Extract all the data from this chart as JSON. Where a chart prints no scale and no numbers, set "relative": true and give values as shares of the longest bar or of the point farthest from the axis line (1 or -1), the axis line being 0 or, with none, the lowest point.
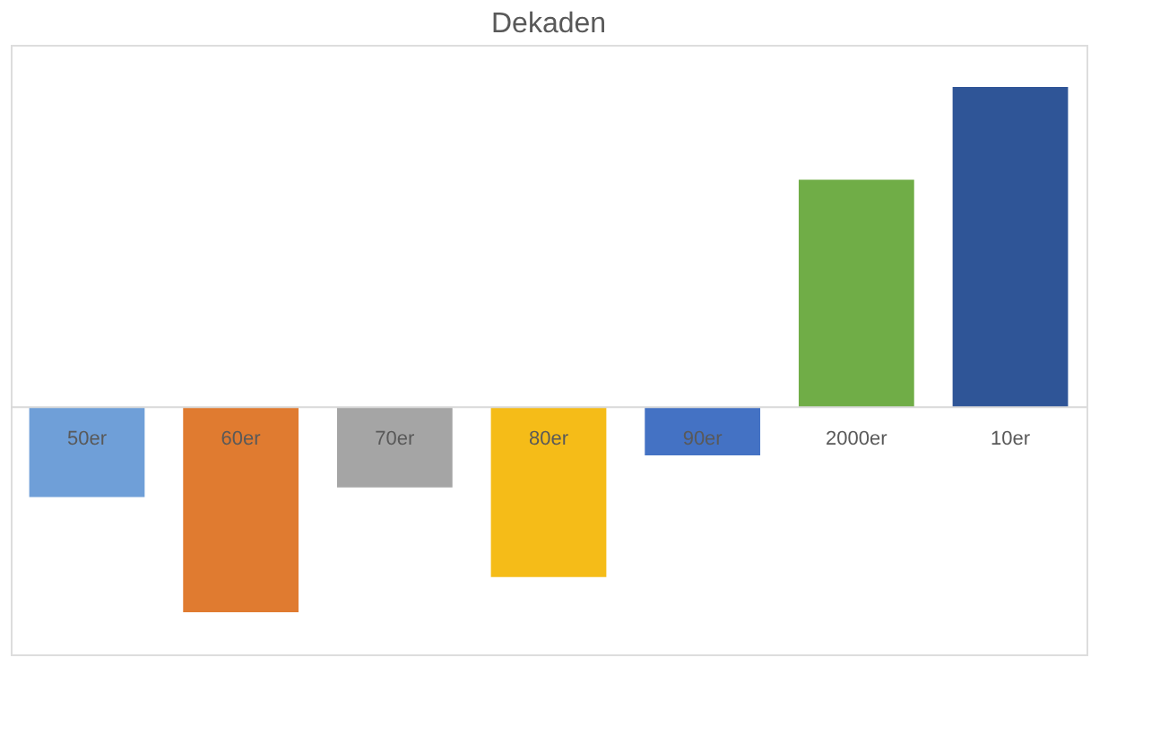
{
  "chart_data": {
    "type": "bar",
    "title": "Dekaden",
    "relative": true,
    "categories": [
      "50er",
      "60er",
      "70er",
      "80er",
      "90er",
      "2000er",
      "10er"
    ],
    "values": [
      -0.28,
      -0.64,
      -0.25,
      -0.53,
      -0.15,
      0.71,
      1
    ],
    "colors": [
      "#6f9fd8",
      "#e07b30",
      "#a5a5a5",
      "#f5bc18",
      "#4472c4",
      "#70ad47",
      "#2f5597"
    ]
  }
}
